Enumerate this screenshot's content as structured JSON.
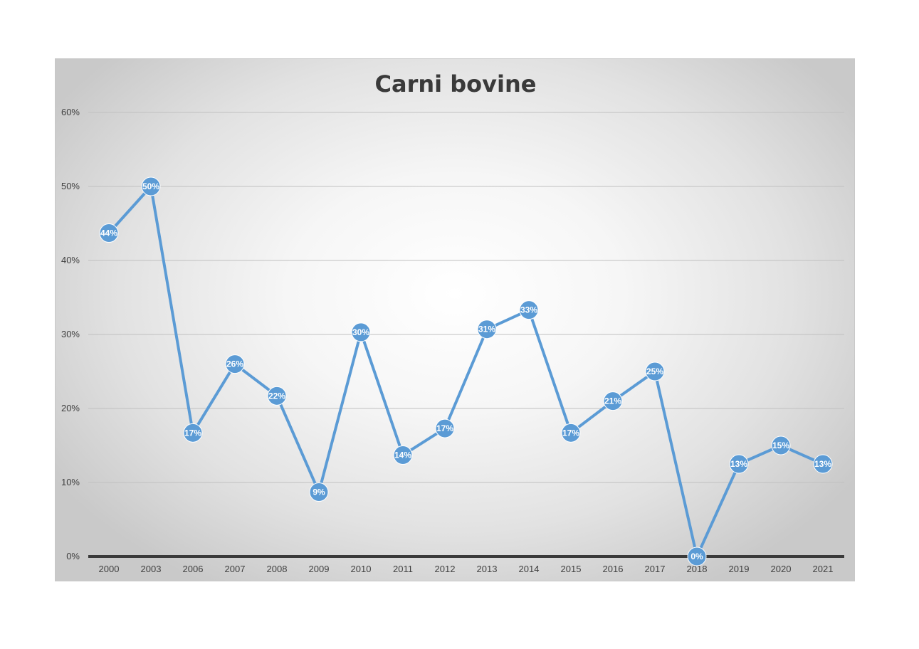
{
  "chart_data": {
    "type": "line",
    "title": "Carni bovine",
    "xlabel": "",
    "ylabel": "",
    "categories": [
      "2000",
      "2003",
      "2006",
      "2007",
      "2008",
      "2009",
      "2010",
      "2011",
      "2012",
      "2013",
      "2014",
      "2015",
      "2016",
      "2017",
      "2018",
      "2019",
      "2020",
      "2021"
    ],
    "series": [
      {
        "values": [
          0.437,
          0.5,
          0.167,
          0.26,
          0.217,
          0.087,
          0.303,
          0.137,
          0.173,
          0.307,
          0.333,
          0.167,
          0.21,
          0.25,
          0.0,
          0.125,
          0.15,
          0.125
        ],
        "data_labels": [
          "44%",
          "50%",
          "17%",
          "26%",
          "22%",
          "9%",
          "30%",
          "14%",
          "17%",
          "31%",
          "33%",
          "17%",
          "21%",
          "25%",
          "0%",
          "13%",
          "15%",
          "13%"
        ]
      }
    ],
    "ylim": [
      0,
      0.6
    ],
    "y_ticks": [
      {
        "value": 0,
        "label": "0%"
      },
      {
        "value": 0.1,
        "label": "10%"
      },
      {
        "value": 0.2,
        "label": "20%"
      },
      {
        "value": 0.3,
        "label": "30%"
      },
      {
        "value": 0.4,
        "label": "40%"
      },
      {
        "value": 0.5,
        "label": "50%"
      },
      {
        "value": 0.6,
        "label": "60%"
      }
    ],
    "grid": true,
    "legend": "none",
    "colors": {
      "line": "#5b9bd5",
      "marker": "#5b9bd5",
      "data_label_text": "#ffffff",
      "axis": "#3a3a3a",
      "gridline": "#c0c0c0"
    }
  }
}
